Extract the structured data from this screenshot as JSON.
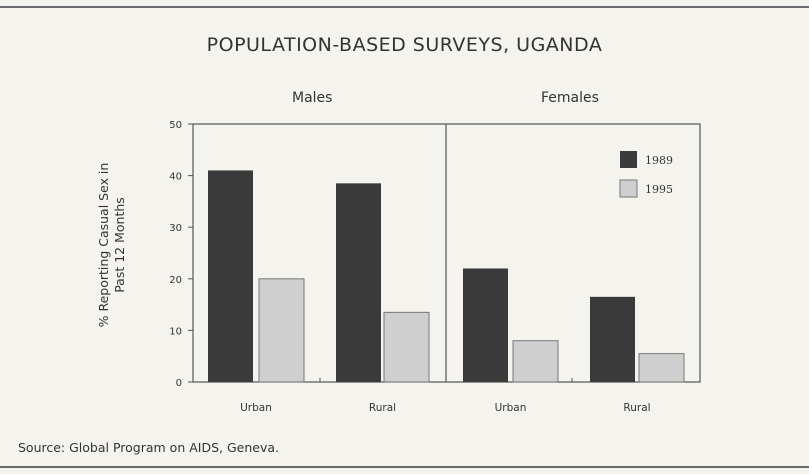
{
  "chart_data": {
    "type": "bar",
    "title": "POPULATION-BASED SURVEYS, UGANDA",
    "ylabel": [
      "% Reporting Casual Sex in",
      "Past 12 Months"
    ],
    "ylim": [
      0,
      50
    ],
    "yticks": [
      "0",
      "10",
      "20",
      "30",
      "40",
      "50"
    ],
    "groups": [
      "Males",
      "Females"
    ],
    "categories": [
      "Urban",
      "Rural",
      "Urban",
      "Rural"
    ],
    "series": [
      {
        "name": "1989",
        "color": "#3a3a3a",
        "values": [
          41,
          38.5,
          22,
          16.5
        ]
      },
      {
        "name": "1995",
        "color": "#cfcfcf",
        "values": [
          20,
          13.5,
          8,
          5.5
        ]
      }
    ],
    "legend": "top-right",
    "grid": false
  },
  "source": "Source: Global Program on AIDS, Geneva."
}
